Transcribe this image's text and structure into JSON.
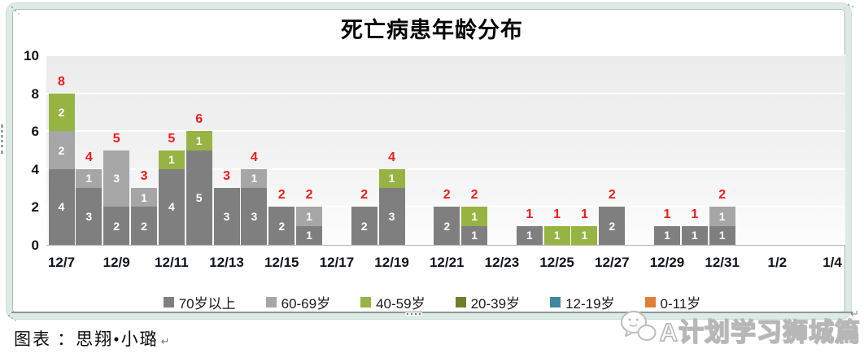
{
  "title": "死亡病患年龄分布",
  "chart_data": {
    "type": "bar",
    "variant": "stacked",
    "title": "死亡病患年龄分布",
    "x": [
      "12/7",
      "12/8",
      "12/9",
      "12/10",
      "12/11",
      "12/12",
      "12/13",
      "12/14",
      "12/15",
      "12/16",
      "12/17",
      "12/18",
      "12/19",
      "12/20",
      "12/21",
      "12/22",
      "12/23",
      "12/24",
      "12/25",
      "12/26",
      "12/27",
      "12/28",
      "12/29",
      "12/30",
      "12/31",
      "1/1",
      "1/2",
      "1/3",
      "1/4"
    ],
    "x_tick_labels": [
      "12/7",
      "12/9",
      "12/11",
      "12/13",
      "12/15",
      "12/17",
      "12/19",
      "12/21",
      "12/23",
      "12/25",
      "12/27",
      "12/29",
      "12/31",
      "1/2",
      "1/4"
    ],
    "yticks": [
      0,
      2,
      4,
      6,
      8,
      10
    ],
    "ylim": [
      0,
      10
    ],
    "grid": true,
    "legend_position": "bottom",
    "series": [
      {
        "name": "70岁以上",
        "color": "#7f7f7f",
        "values": [
          4,
          3,
          2,
          2,
          4,
          5,
          3,
          3,
          2,
          1,
          0,
          2,
          3,
          0,
          2,
          1,
          0,
          1,
          0,
          0,
          2,
          0,
          1,
          1,
          1,
          0,
          0,
          0,
          0
        ]
      },
      {
        "name": "60-69岁",
        "color": "#a6a6a6",
        "values": [
          2,
          1,
          3,
          1,
          0,
          0,
          0,
          1,
          0,
          1,
          0,
          0,
          0,
          0,
          0,
          0,
          0,
          0,
          0,
          0,
          0,
          0,
          0,
          0,
          1,
          0,
          0,
          0,
          0
        ]
      },
      {
        "name": "40-59岁",
        "color": "#97b344",
        "values": [
          2,
          0,
          0,
          0,
          1,
          1,
          0,
          0,
          0,
          0,
          0,
          0,
          1,
          0,
          0,
          1,
          0,
          0,
          1,
          1,
          0,
          0,
          0,
          0,
          0,
          0,
          0,
          0,
          0
        ]
      },
      {
        "name": "20-39岁",
        "color": "#6f7e2d",
        "values": [
          0,
          0,
          0,
          0,
          0,
          0,
          0,
          0,
          0,
          0,
          0,
          0,
          0,
          0,
          0,
          0,
          0,
          0,
          0,
          0,
          0,
          0,
          0,
          0,
          0,
          0,
          0,
          0,
          0
        ]
      },
      {
        "name": "12-19岁",
        "color": "#3e88a0",
        "values": [
          0,
          0,
          0,
          0,
          0,
          0,
          0,
          0,
          0,
          0,
          0,
          0,
          0,
          0,
          0,
          0,
          0,
          0,
          0,
          0,
          0,
          0,
          0,
          0,
          0,
          0,
          0,
          0,
          0
        ]
      },
      {
        "name": "0-11岁",
        "color": "#dc8035",
        "values": [
          0,
          0,
          0,
          0,
          0,
          0,
          0,
          0,
          0,
          0,
          0,
          0,
          0,
          0,
          0,
          0,
          0,
          0,
          0,
          0,
          0,
          0,
          0,
          0,
          0,
          0,
          0,
          0,
          0
        ]
      }
    ],
    "totals": [
      8,
      4,
      5,
      3,
      5,
      6,
      3,
      4,
      2,
      2,
      0,
      2,
      4,
      0,
      2,
      2,
      0,
      1,
      1,
      1,
      2,
      0,
      1,
      1,
      2,
      0,
      0,
      0,
      0
    ],
    "total_label_color": "#ef1c1c",
    "segment_label_color": "#ffffff"
  },
  "caption": {
    "label": "图表 ：思翔•小璐",
    "return_mark": "↵"
  },
  "watermark": {
    "text": "A计划学习狮城篇",
    "logo": "wechat-bubbles-icon"
  },
  "frame": {
    "return_mark": "↵"
  }
}
